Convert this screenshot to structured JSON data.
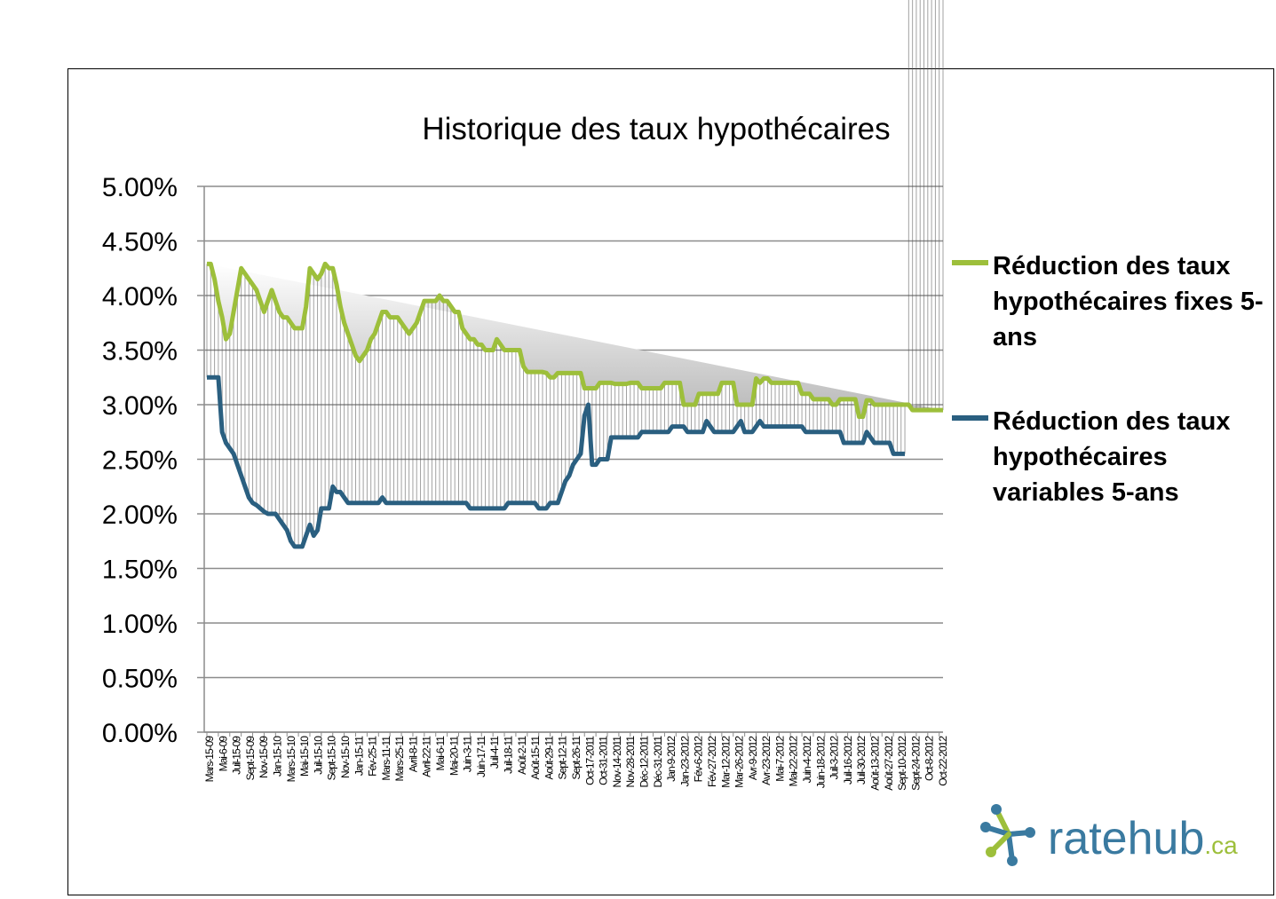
{
  "chart_data": {
    "type": "area",
    "title": "Historique des taux hypothécaires",
    "xlabel": "",
    "ylabel": "",
    "ylim": [
      0,
      5
    ],
    "y_ticks": [
      "0.00%",
      "0.50%",
      "1.00%",
      "1.50%",
      "2.00%",
      "2.50%",
      "3.00%",
      "3.50%",
      "4.00%",
      "4.50%",
      "5.00%"
    ],
    "grid": true,
    "legend_position": "right",
    "x_tick_labels": [
      "Mars-15-09",
      "Mai-6-09",
      "Juil-15-09",
      "Sept-15-09",
      "Nov-15-09",
      "Jan-15-10",
      "Mars-15-10",
      "Mai-15-10",
      "Juil-15-10",
      "Sept-15-10",
      "Nov-15-10",
      "Jan-15-11",
      "Fév-25-11",
      "Mars-11-11",
      "Mars-25-11",
      "Avril-8-11",
      "Avril-22-11",
      "Mai-6-11",
      "Mai-20-11",
      "Juin-3-11",
      "Juin-17-11",
      "Juil-4-11",
      "Juil-18-11",
      "Août-2-11",
      "Août-15-11",
      "Août-29-11",
      "Sept-12-11",
      "Sept-26-11",
      "Oct-17-2011",
      "Oct-31-2011",
      "Nov-14-2011",
      "Nov-28-2011",
      "Déc-12-2011",
      "Déc-31-2011",
      "Jan-9-2012",
      "Jan-23-2012",
      "Fév-6-2012",
      "Fév-27-2012",
      "Mar-12-2012",
      "Mar-26-2012",
      "Avr-9-2012",
      "Avr-23-2012",
      "Mai-7-2012",
      "Mai-22-2012",
      "Juin-4-2012",
      "Juin-18-2012",
      "Juil-3-2012",
      "Juil-16-2012",
      "Juil-30-2012",
      "Août-13-2012",
      "Août-27-2012",
      "Sept-10-2012",
      "Sept-24-2012",
      "Oct-8-2012",
      "Oct-22-2012"
    ],
    "series": [
      {
        "name": "Réduction des taux hypothécaires fixes 5-ans",
        "color": "#9dbf3b",
        "values": [
          4.29,
          4.29,
          4.15,
          3.95,
          3.8,
          3.6,
          3.65,
          3.85,
          4.05,
          4.25,
          4.2,
          4.15,
          4.1,
          4.05,
          3.95,
          3.85,
          3.95,
          4.05,
          3.95,
          3.85,
          3.8,
          3.8,
          3.75,
          3.7,
          3.7,
          3.7,
          3.9,
          4.25,
          4.2,
          4.15,
          4.2,
          4.29,
          4.25,
          4.25,
          4.1,
          3.9,
          3.75,
          3.65,
          3.55,
          3.45,
          3.4,
          3.45,
          3.5,
          3.6,
          3.65,
          3.75,
          3.85,
          3.85,
          3.8,
          3.8,
          3.8,
          3.75,
          3.7,
          3.65,
          3.7,
          3.75,
          3.85,
          3.95,
          3.95,
          3.95,
          3.95,
          4.0,
          3.95,
          3.95,
          3.9,
          3.85,
          3.85,
          3.7,
          3.65,
          3.6,
          3.6,
          3.55,
          3.55,
          3.5,
          3.5,
          3.5,
          3.6,
          3.55,
          3.5,
          3.5,
          3.5,
          3.5,
          3.5,
          3.35,
          3.3,
          3.3,
          3.3,
          3.3,
          3.3,
          3.29,
          3.25,
          3.25,
          3.29,
          3.29,
          3.29,
          3.29,
          3.29,
          3.29,
          3.29,
          3.15,
          3.15,
          3.15,
          3.15,
          3.2,
          3.2,
          3.2,
          3.2,
          3.19,
          3.19,
          3.19,
          3.19,
          3.2,
          3.2,
          3.2,
          3.15,
          3.15,
          3.15,
          3.15,
          3.15,
          3.15,
          3.2,
          3.2,
          3.2,
          3.2,
          3.2,
          3.0,
          3.0,
          3.0,
          3.0,
          3.1,
          3.1,
          3.1,
          3.1,
          3.1,
          3.1,
          3.2,
          3.2,
          3.2,
          3.2,
          3.0,
          3.0,
          3.0,
          3.0,
          3.0,
          3.24,
          3.2,
          3.24,
          3.24,
          3.2,
          3.2,
          3.2,
          3.2,
          3.2,
          3.2,
          3.2,
          3.2,
          3.1,
          3.1,
          3.1,
          3.05,
          3.05,
          3.05,
          3.05,
          3.05,
          3.0,
          3.0,
          3.05,
          3.05,
          3.05,
          3.05,
          3.05,
          2.89,
          2.89,
          3.04,
          3.04,
          3.0,
          3.0,
          3.0,
          3.0,
          3.0,
          3.0,
          3.0,
          3.0,
          3.0,
          3.0,
          2.95,
          2.95,
          2.95,
          2.95,
          2.95,
          2.95,
          2.95,
          2.95,
          2.95
        ]
      },
      {
        "name": "Réduction des taux hypothécaires variables 5-ans",
        "color": "#2a5f80",
        "values": [
          3.25,
          3.25,
          3.25,
          3.25,
          2.75,
          2.65,
          2.6,
          2.55,
          2.45,
          2.35,
          2.25,
          2.15,
          2.1,
          2.08,
          2.05,
          2.02,
          2.0,
          2.0,
          2.0,
          1.95,
          1.9,
          1.85,
          1.75,
          1.7,
          1.7,
          1.7,
          1.8,
          1.9,
          1.8,
          1.85,
          2.05,
          2.05,
          2.05,
          2.25,
          2.2,
          2.2,
          2.15,
          2.1,
          2.1,
          2.1,
          2.1,
          2.1,
          2.1,
          2.1,
          2.1,
          2.1,
          2.15,
          2.1,
          2.1,
          2.1,
          2.1,
          2.1,
          2.1,
          2.1,
          2.1,
          2.1,
          2.1,
          2.1,
          2.1,
          2.1,
          2.1,
          2.1,
          2.1,
          2.1,
          2.1,
          2.1,
          2.1,
          2.1,
          2.1,
          2.05,
          2.05,
          2.05,
          2.05,
          2.05,
          2.05,
          2.05,
          2.05,
          2.05,
          2.05,
          2.1,
          2.1,
          2.1,
          2.1,
          2.1,
          2.1,
          2.1,
          2.1,
          2.05,
          2.05,
          2.05,
          2.1,
          2.1,
          2.1,
          2.2,
          2.3,
          2.35,
          2.45,
          2.5,
          2.55,
          2.9,
          3.0,
          2.45,
          2.45,
          2.5,
          2.5,
          2.5,
          2.7,
          2.7,
          2.7,
          2.7,
          2.7,
          2.7,
          2.7,
          2.7,
          2.75,
          2.75,
          2.75,
          2.75,
          2.75,
          2.75,
          2.75,
          2.75,
          2.8,
          2.8,
          2.8,
          2.8,
          2.75,
          2.75,
          2.75,
          2.75,
          2.75,
          2.85,
          2.8,
          2.75,
          2.75,
          2.75,
          2.75,
          2.75,
          2.75,
          2.8,
          2.85,
          2.75,
          2.75,
          2.75,
          2.8,
          2.85,
          2.8,
          2.8,
          2.8,
          2.8,
          2.8,
          2.8,
          2.8,
          2.8,
          2.8,
          2.8,
          2.8,
          2.75,
          2.75,
          2.75,
          2.75,
          2.75,
          2.75,
          2.75,
          2.75,
          2.75,
          2.75,
          2.65,
          2.65,
          2.65,
          2.65,
          2.65,
          2.65,
          2.75,
          2.7,
          2.65,
          2.65,
          2.65,
          2.65,
          2.65,
          2.55,
          2.55,
          2.55,
          2.55
        ]
      }
    ]
  },
  "logo": {
    "text_main": "ratehub",
    "text_suffix": ".ca"
  }
}
